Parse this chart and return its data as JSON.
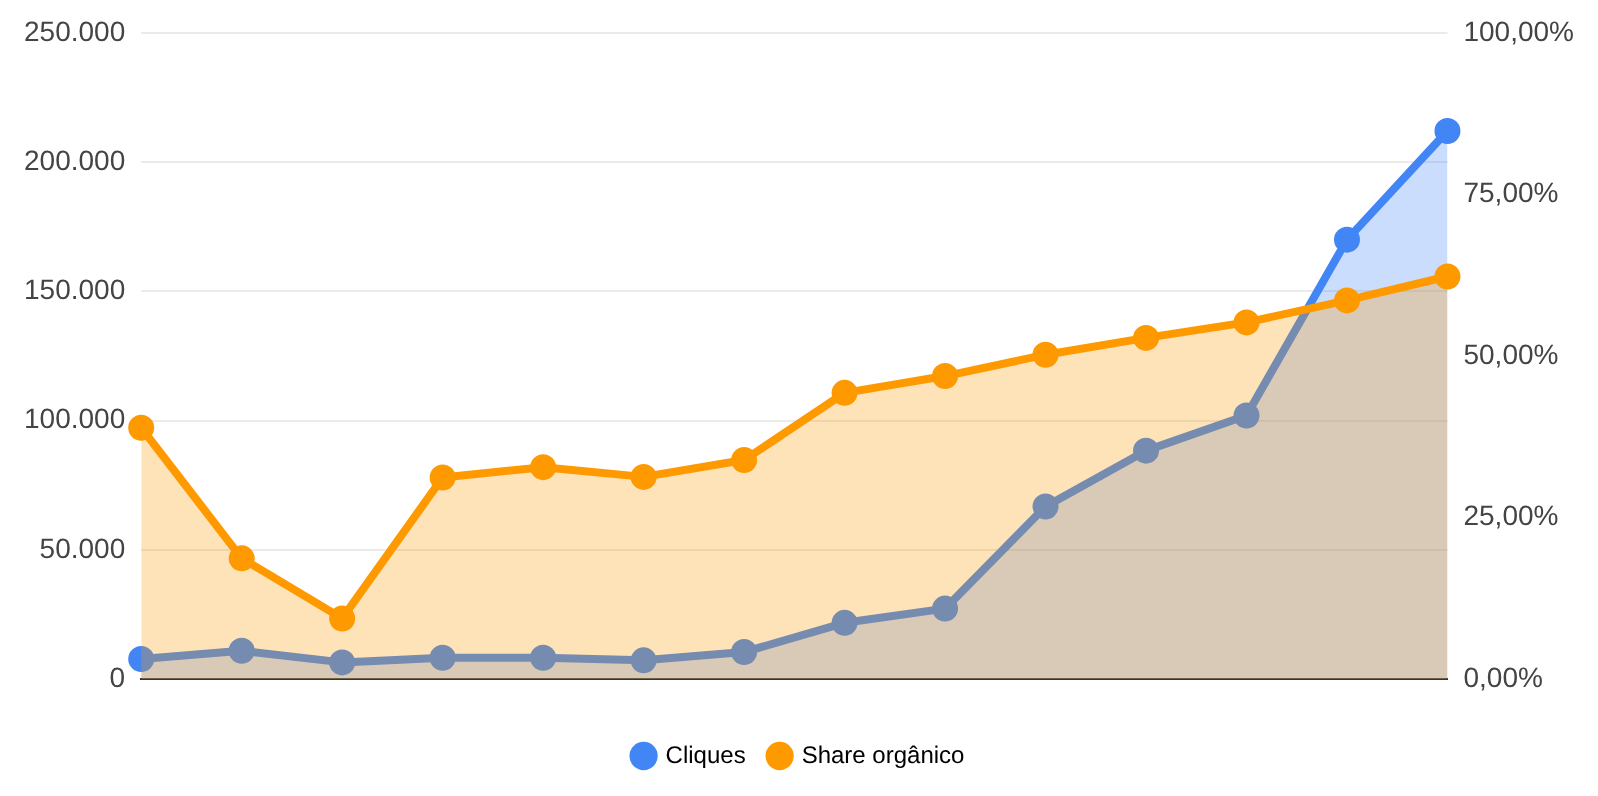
{
  "chart_data": {
    "type": "area",
    "categories": [
      null,
      null,
      null,
      null,
      null,
      null,
      null,
      null,
      null,
      null,
      null,
      null,
      null,
      null
    ],
    "series": [
      {
        "name": "Cliques",
        "color": "#4285f4",
        "values": [
          7800,
          11000,
          6500,
          8300,
          8300,
          7300,
          10500,
          21800,
          27300,
          66800,
          88400,
          102000,
          170000,
          212000
        ]
      },
      {
        "name": "Share orgânico",
        "color": "#ff9900",
        "axis": "y2",
        "values": [
          38.9,
          18.7,
          9.4,
          31.2,
          32.8,
          31.3,
          33.9,
          44.3,
          46.9,
          50.2,
          52.8,
          55.2,
          58.6,
          62.3
        ]
      }
    ],
    "ylim": [
      0,
      250000
    ],
    "yticks": [
      {
        "value": 0,
        "label": "0"
      },
      {
        "value": 50000,
        "label": "50.000"
      },
      {
        "value": 100000,
        "label": "100.000"
      },
      {
        "value": 150000,
        "label": "150.000"
      },
      {
        "value": 200000,
        "label": "200.000"
      },
      {
        "value": 250000,
        "label": "250.000"
      }
    ],
    "y2lim": [
      0,
      100
    ],
    "y2ticks": [
      {
        "value": 0,
        "label": "0,00%"
      },
      {
        "value": 25,
        "label": "25,00%"
      },
      {
        "value": 50,
        "label": "50,00%"
      },
      {
        "value": 75,
        "label": "75,00%"
      },
      {
        "value": 100,
        "label": "100,00%"
      }
    ],
    "grid": "y",
    "legend": "bottom",
    "marker": "circle",
    "line_style": "solid"
  }
}
